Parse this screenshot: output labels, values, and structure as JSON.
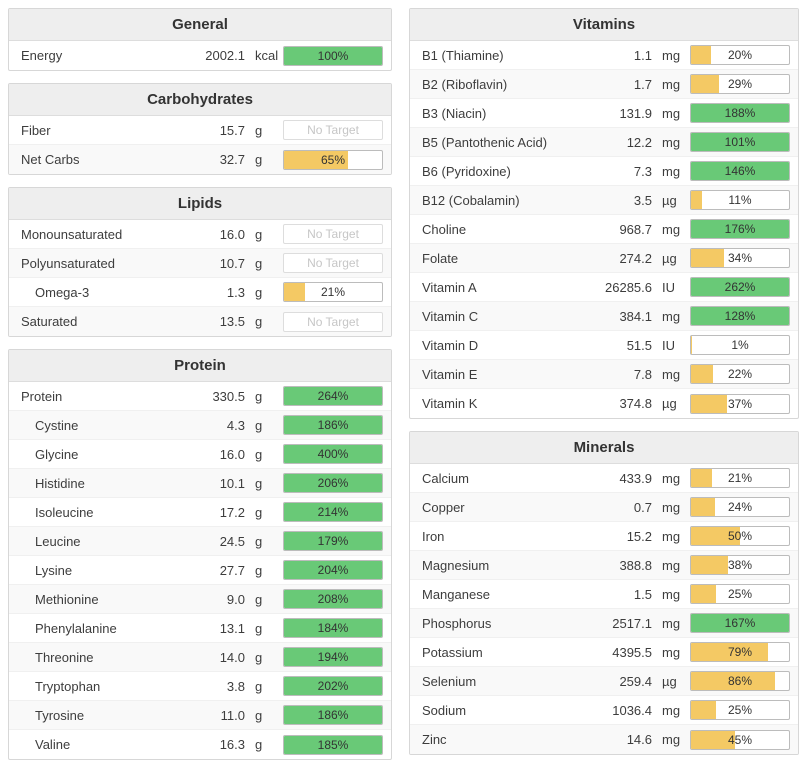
{
  "labels": {
    "no_target": "No Target"
  },
  "colors": {
    "green": "#69c977",
    "amber": "#f4c964"
  },
  "columns": {
    "left": [
      {
        "title": "General",
        "rows": [
          {
            "label": "Energy",
            "value": "2002.1",
            "unit": "kcal",
            "percent": 100
          }
        ]
      },
      {
        "title": "Carbohydrates",
        "rows": [
          {
            "label": "Fiber",
            "value": "15.7",
            "unit": "g",
            "percent": null
          },
          {
            "label": "Net Carbs",
            "value": "32.7",
            "unit": "g",
            "percent": 65
          }
        ]
      },
      {
        "title": "Lipids",
        "rows": [
          {
            "label": "Monounsaturated",
            "value": "16.0",
            "unit": "g",
            "percent": null
          },
          {
            "label": "Polyunsaturated",
            "value": "10.7",
            "unit": "g",
            "percent": null
          },
          {
            "label": "Omega-3",
            "value": "1.3",
            "unit": "g",
            "percent": 21,
            "indent": true
          },
          {
            "label": "Saturated",
            "value": "13.5",
            "unit": "g",
            "percent": null
          }
        ]
      },
      {
        "title": "Protein",
        "rows": [
          {
            "label": "Protein",
            "value": "330.5",
            "unit": "g",
            "percent": 264
          },
          {
            "label": "Cystine",
            "value": "4.3",
            "unit": "g",
            "percent": 186,
            "indent": true
          },
          {
            "label": "Glycine",
            "value": "16.0",
            "unit": "g",
            "percent": 400,
            "indent": true
          },
          {
            "label": "Histidine",
            "value": "10.1",
            "unit": "g",
            "percent": 206,
            "indent": true
          },
          {
            "label": "Isoleucine",
            "value": "17.2",
            "unit": "g",
            "percent": 214,
            "indent": true
          },
          {
            "label": "Leucine",
            "value": "24.5",
            "unit": "g",
            "percent": 179,
            "indent": true
          },
          {
            "label": "Lysine",
            "value": "27.7",
            "unit": "g",
            "percent": 204,
            "indent": true
          },
          {
            "label": "Methionine",
            "value": "9.0",
            "unit": "g",
            "percent": 208,
            "indent": true
          },
          {
            "label": "Phenylalanine",
            "value": "13.1",
            "unit": "g",
            "percent": 184,
            "indent": true
          },
          {
            "label": "Threonine",
            "value": "14.0",
            "unit": "g",
            "percent": 194,
            "indent": true
          },
          {
            "label": "Tryptophan",
            "value": "3.8",
            "unit": "g",
            "percent": 202,
            "indent": true
          },
          {
            "label": "Tyrosine",
            "value": "11.0",
            "unit": "g",
            "percent": 186,
            "indent": true
          },
          {
            "label": "Valine",
            "value": "16.3",
            "unit": "g",
            "percent": 185,
            "indent": true
          }
        ]
      }
    ],
    "right": [
      {
        "title": "Vitamins",
        "rows": [
          {
            "label": "B1 (Thiamine)",
            "value": "1.1",
            "unit": "mg",
            "percent": 20
          },
          {
            "label": "B2 (Riboflavin)",
            "value": "1.7",
            "unit": "mg",
            "percent": 29
          },
          {
            "label": "B3 (Niacin)",
            "value": "131.9",
            "unit": "mg",
            "percent": 188
          },
          {
            "label": "B5 (Pantothenic Acid)",
            "value": "12.2",
            "unit": "mg",
            "percent": 101
          },
          {
            "label": "B6 (Pyridoxine)",
            "value": "7.3",
            "unit": "mg",
            "percent": 146
          },
          {
            "label": "B12 (Cobalamin)",
            "value": "3.5",
            "unit": "µg",
            "percent": 11
          },
          {
            "label": "Choline",
            "value": "968.7",
            "unit": "mg",
            "percent": 176
          },
          {
            "label": "Folate",
            "value": "274.2",
            "unit": "µg",
            "percent": 34
          },
          {
            "label": "Vitamin A",
            "value": "26285.6",
            "unit": "IU",
            "percent": 262
          },
          {
            "label": "Vitamin C",
            "value": "384.1",
            "unit": "mg",
            "percent": 128
          },
          {
            "label": "Vitamin D",
            "value": "51.5",
            "unit": "IU",
            "percent": 1
          },
          {
            "label": "Vitamin E",
            "value": "7.8",
            "unit": "mg",
            "percent": 22
          },
          {
            "label": "Vitamin K",
            "value": "374.8",
            "unit": "µg",
            "percent": 37
          }
        ]
      },
      {
        "title": "Minerals",
        "rows": [
          {
            "label": "Calcium",
            "value": "433.9",
            "unit": "mg",
            "percent": 21
          },
          {
            "label": "Copper",
            "value": "0.7",
            "unit": "mg",
            "percent": 24
          },
          {
            "label": "Iron",
            "value": "15.2",
            "unit": "mg",
            "percent": 50
          },
          {
            "label": "Magnesium",
            "value": "388.8",
            "unit": "mg",
            "percent": 38
          },
          {
            "label": "Manganese",
            "value": "1.5",
            "unit": "mg",
            "percent": 25
          },
          {
            "label": "Phosphorus",
            "value": "2517.1",
            "unit": "mg",
            "percent": 167
          },
          {
            "label": "Potassium",
            "value": "4395.5",
            "unit": "mg",
            "percent": 79
          },
          {
            "label": "Selenium",
            "value": "259.4",
            "unit": "µg",
            "percent": 86
          },
          {
            "label": "Sodium",
            "value": "1036.4",
            "unit": "mg",
            "percent": 25
          },
          {
            "label": "Zinc",
            "value": "14.6",
            "unit": "mg",
            "percent": 45
          }
        ]
      }
    ]
  }
}
